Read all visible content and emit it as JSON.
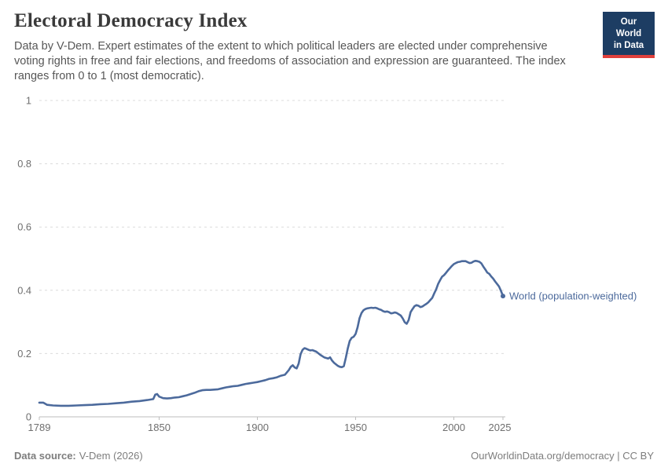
{
  "header": {
    "title": "Electoral Democracy Index",
    "subtitle": "Data by V-Dem. Expert estimates of the extent to which political leaders are elected under comprehensive voting rights in free and fair elections, and freedoms of association and expression are guaranteed. The index ranges from 0 to 1 (most democratic).",
    "logo": {
      "line1": "Our World",
      "line2": "in Data",
      "bg_color": "#1d3d63",
      "accent_color": "#e0403c"
    }
  },
  "chart_data": {
    "type": "line",
    "title": "Electoral Democracy Index",
    "xlabel": "",
    "ylabel": "",
    "xlim": [
      1789,
      2025
    ],
    "ylim": [
      0,
      1
    ],
    "x_ticks": [
      1789,
      1850,
      1900,
      1950,
      2000,
      2025
    ],
    "y_ticks": [
      0,
      0.2,
      0.4,
      0.6,
      0.8,
      1
    ],
    "grid": "horizontal-dashed",
    "legend_position": "end-of-line-label",
    "colors": {
      "grid": "#dcdcdc",
      "axis": "#bdbdbd",
      "tick_text": "#6f6f6f"
    },
    "series": [
      {
        "name": "World (population-weighted)",
        "color": "#4c6a9c",
        "points": [
          [
            1789,
            0.045
          ],
          [
            1791,
            0.045
          ],
          [
            1793,
            0.038
          ],
          [
            1796,
            0.036
          ],
          [
            1800,
            0.035
          ],
          [
            1804,
            0.035
          ],
          [
            1808,
            0.036
          ],
          [
            1812,
            0.037
          ],
          [
            1816,
            0.038
          ],
          [
            1820,
            0.04
          ],
          [
            1824,
            0.041
          ],
          [
            1828,
            0.043
          ],
          [
            1832,
            0.045
          ],
          [
            1836,
            0.048
          ],
          [
            1840,
            0.05
          ],
          [
            1844,
            0.053
          ],
          [
            1847,
            0.056
          ],
          [
            1848,
            0.07
          ],
          [
            1849,
            0.072
          ],
          [
            1850,
            0.064
          ],
          [
            1852,
            0.059
          ],
          [
            1854,
            0.058
          ],
          [
            1856,
            0.059
          ],
          [
            1858,
            0.061
          ],
          [
            1860,
            0.062
          ],
          [
            1862,
            0.065
          ],
          [
            1864,
            0.068
          ],
          [
            1866,
            0.072
          ],
          [
            1868,
            0.076
          ],
          [
            1870,
            0.081
          ],
          [
            1872,
            0.084
          ],
          [
            1874,
            0.085
          ],
          [
            1876,
            0.085
          ],
          [
            1878,
            0.086
          ],
          [
            1880,
            0.087
          ],
          [
            1882,
            0.09
          ],
          [
            1884,
            0.093
          ],
          [
            1886,
            0.095
          ],
          [
            1888,
            0.097
          ],
          [
            1890,
            0.098
          ],
          [
            1892,
            0.101
          ],
          [
            1894,
            0.104
          ],
          [
            1896,
            0.106
          ],
          [
            1898,
            0.108
          ],
          [
            1900,
            0.11
          ],
          [
            1902,
            0.113
          ],
          [
            1904,
            0.116
          ],
          [
            1906,
            0.12
          ],
          [
            1908,
            0.122
          ],
          [
            1910,
            0.125
          ],
          [
            1912,
            0.13
          ],
          [
            1914,
            0.133
          ],
          [
            1916,
            0.148
          ],
          [
            1917,
            0.158
          ],
          [
            1918,
            0.163
          ],
          [
            1919,
            0.156
          ],
          [
            1920,
            0.153
          ],
          [
            1921,
            0.168
          ],
          [
            1922,
            0.198
          ],
          [
            1923,
            0.212
          ],
          [
            1924,
            0.217
          ],
          [
            1925,
            0.215
          ],
          [
            1926,
            0.212
          ],
          [
            1927,
            0.21
          ],
          [
            1928,
            0.211
          ],
          [
            1930,
            0.206
          ],
          [
            1932,
            0.196
          ],
          [
            1934,
            0.188
          ],
          [
            1936,
            0.184
          ],
          [
            1937,
            0.188
          ],
          [
            1938,
            0.178
          ],
          [
            1939,
            0.171
          ],
          [
            1940,
            0.166
          ],
          [
            1941,
            0.161
          ],
          [
            1942,
            0.158
          ],
          [
            1943,
            0.157
          ],
          [
            1944,
            0.16
          ],
          [
            1945,
            0.186
          ],
          [
            1946,
            0.216
          ],
          [
            1947,
            0.24
          ],
          [
            1948,
            0.25
          ],
          [
            1949,
            0.253
          ],
          [
            1950,
            0.262
          ],
          [
            1951,
            0.283
          ],
          [
            1952,
            0.312
          ],
          [
            1953,
            0.328
          ],
          [
            1954,
            0.337
          ],
          [
            1955,
            0.341
          ],
          [
            1956,
            0.343
          ],
          [
            1957,
            0.344
          ],
          [
            1958,
            0.345
          ],
          [
            1959,
            0.344
          ],
          [
            1960,
            0.345
          ],
          [
            1961,
            0.343
          ],
          [
            1962,
            0.34
          ],
          [
            1963,
            0.338
          ],
          [
            1964,
            0.334
          ],
          [
            1965,
            0.332
          ],
          [
            1966,
            0.333
          ],
          [
            1967,
            0.331
          ],
          [
            1968,
            0.327
          ],
          [
            1969,
            0.328
          ],
          [
            1970,
            0.33
          ],
          [
            1971,
            0.328
          ],
          [
            1972,
            0.324
          ],
          [
            1973,
            0.32
          ],
          [
            1974,
            0.311
          ],
          [
            1975,
            0.299
          ],
          [
            1976,
            0.294
          ],
          [
            1977,
            0.306
          ],
          [
            1978,
            0.331
          ],
          [
            1979,
            0.341
          ],
          [
            1980,
            0.35
          ],
          [
            1981,
            0.353
          ],
          [
            1982,
            0.351
          ],
          [
            1983,
            0.347
          ],
          [
            1984,
            0.349
          ],
          [
            1985,
            0.353
          ],
          [
            1986,
            0.357
          ],
          [
            1987,
            0.362
          ],
          [
            1988,
            0.369
          ],
          [
            1989,
            0.376
          ],
          [
            1990,
            0.39
          ],
          [
            1991,
            0.403
          ],
          [
            1992,
            0.42
          ],
          [
            1993,
            0.432
          ],
          [
            1994,
            0.443
          ],
          [
            1995,
            0.448
          ],
          [
            1996,
            0.455
          ],
          [
            1997,
            0.463
          ],
          [
            1998,
            0.47
          ],
          [
            1999,
            0.477
          ],
          [
            2000,
            0.483
          ],
          [
            2001,
            0.486
          ],
          [
            2002,
            0.489
          ],
          [
            2003,
            0.49
          ],
          [
            2004,
            0.492
          ],
          [
            2005,
            0.492
          ],
          [
            2006,
            0.492
          ],
          [
            2007,
            0.489
          ],
          [
            2008,
            0.486
          ],
          [
            2009,
            0.487
          ],
          [
            2010,
            0.491
          ],
          [
            2011,
            0.493
          ],
          [
            2012,
            0.492
          ],
          [
            2013,
            0.49
          ],
          [
            2014,
            0.485
          ],
          [
            2015,
            0.475
          ],
          [
            2016,
            0.466
          ],
          [
            2017,
            0.456
          ],
          [
            2018,
            0.452
          ],
          [
            2019,
            0.444
          ],
          [
            2020,
            0.437
          ],
          [
            2021,
            0.428
          ],
          [
            2022,
            0.42
          ],
          [
            2023,
            0.412
          ],
          [
            2024,
            0.398
          ],
          [
            2025,
            0.382
          ]
        ]
      }
    ]
  },
  "footer": {
    "source_label": "Data source:",
    "source_value": "V-Dem (2026)",
    "credit": "OurWorldinData.org/democracy | CC BY"
  }
}
